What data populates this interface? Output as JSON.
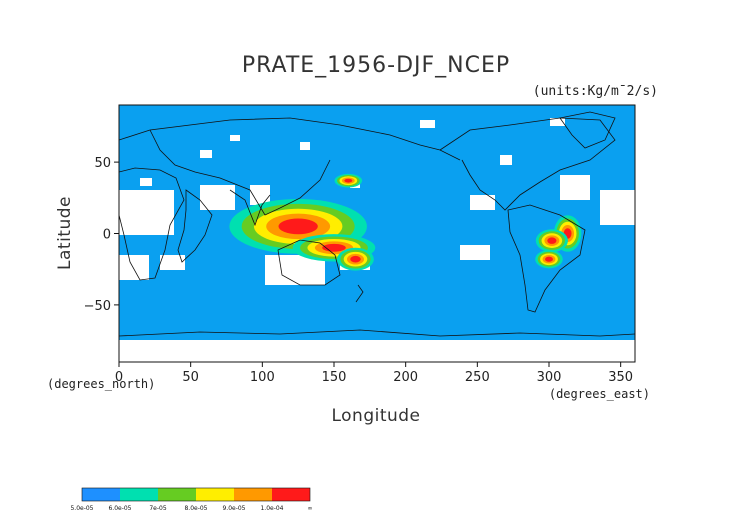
{
  "chart_data": {
    "type": "heatmap",
    "title": "PRATE_1956-DJF_NCEP",
    "units_label": "(units:Kg/m¯2/s)",
    "xlabel": "Longitude",
    "ylabel": "Latitude",
    "x_unit_label": "(degrees_east)",
    "y_unit_label": "(degrees_north)",
    "xlim": [
      0,
      360
    ],
    "ylim": [
      -90,
      90
    ],
    "x_ticks": [
      0,
      50,
      100,
      150,
      200,
      250,
      300,
      350
    ],
    "y_ticks": [
      -50,
      0,
      50
    ],
    "colorbar": {
      "levels": [
        "5.0e-05",
        "6.0e-05",
        "7e-05",
        "8.0e-05",
        "9.0e-05",
        "1.0e-04",
        "∞"
      ],
      "colors": [
        "#1e90ff",
        "#00e0b0",
        "#66cc22",
        "#ffee00",
        "#ff9900",
        "#ff1a1a"
      ]
    },
    "background_color": "#0aa0f0",
    "missing_color": "#ffffff",
    "regions": [
      {
        "level": 5,
        "lon": 125,
        "lat": 5,
        "rx": 30,
        "ry": 12
      },
      {
        "level": 5,
        "lon": 150,
        "lat": -10,
        "rx": 18,
        "ry": 6
      },
      {
        "level": 5,
        "lon": 165,
        "lat": -18,
        "rx": 8,
        "ry": 5
      },
      {
        "level": 5,
        "lon": 160,
        "lat": 37,
        "rx": 6,
        "ry": 3
      },
      {
        "level": 5,
        "lon": 313,
        "lat": 0,
        "rx": 6,
        "ry": 8
      },
      {
        "level": 5,
        "lon": 302,
        "lat": -5,
        "rx": 7,
        "ry": 5
      },
      {
        "level": 5,
        "lon": 300,
        "lat": -18,
        "rx": 6,
        "ry": 4
      }
    ]
  }
}
